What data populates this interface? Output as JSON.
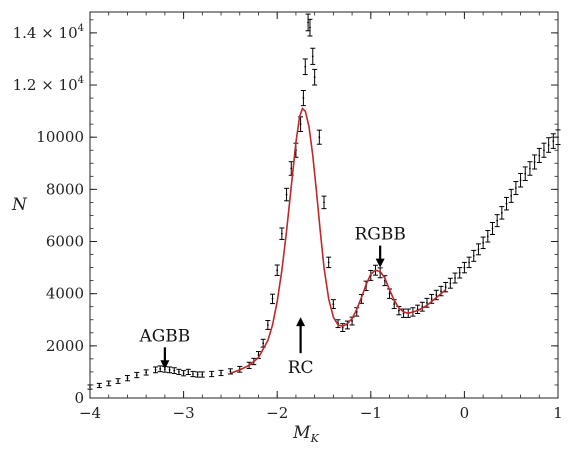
{
  "chart_data": {
    "type": "scatter",
    "title": "",
    "xlabel": "M",
    "xlabel_sub": "K",
    "ylabel": "N",
    "xlim": [
      -4,
      1
    ],
    "ylim": [
      0,
      14800
    ],
    "grid": false,
    "x_ticks": [
      {
        "value": -4,
        "label": "−4"
      },
      {
        "value": -3,
        "label": "−3"
      },
      {
        "value": -2,
        "label": "−2"
      },
      {
        "value": -1,
        "label": "−1"
      },
      {
        "value": 0,
        "label": "0"
      },
      {
        "value": 1,
        "label": "1"
      }
    ],
    "y_ticks": [
      {
        "value": 0,
        "label": "0"
      },
      {
        "value": 2000,
        "label": "2000"
      },
      {
        "value": 4000,
        "label": "4000"
      },
      {
        "value": 6000,
        "label": "6000"
      },
      {
        "value": 8000,
        "label": "8000"
      },
      {
        "value": 10000,
        "label": "10000"
      },
      {
        "value": 12000,
        "label": "1.2 × 10",
        "exp": "4"
      },
      {
        "value": 14000,
        "label": "1.4 × 10",
        "exp": "4"
      }
    ],
    "series": [
      {
        "kind": "points_with_errorbars",
        "color": "#000000",
        "x": [
          -4.0,
          -3.9,
          -3.8,
          -3.7,
          -3.6,
          -3.5,
          -3.4,
          -3.3,
          -3.25,
          -3.2,
          -3.15,
          -3.1,
          -3.05,
          -3.0,
          -2.95,
          -2.9,
          -2.85,
          -2.8,
          -2.7,
          -2.6,
          -2.5,
          -2.4,
          -2.3,
          -2.25,
          -2.2,
          -2.15,
          -2.1,
          -2.05,
          -2.0,
          -1.95,
          -1.9,
          -1.85,
          -1.8,
          -1.75,
          -1.72,
          -1.7,
          -1.67,
          -1.65,
          -1.62,
          -1.6,
          -1.55,
          -1.5,
          -1.45,
          -1.4,
          -1.35,
          -1.3,
          -1.25,
          -1.2,
          -1.15,
          -1.1,
          -1.05,
          -1.0,
          -0.95,
          -0.9,
          -0.85,
          -0.8,
          -0.75,
          -0.7,
          -0.65,
          -0.6,
          -0.55,
          -0.5,
          -0.45,
          -0.4,
          -0.35,
          -0.3,
          -0.25,
          -0.2,
          -0.15,
          -0.1,
          -0.05,
          0.0,
          0.05,
          0.1,
          0.15,
          0.2,
          0.25,
          0.3,
          0.35,
          0.4,
          0.45,
          0.5,
          0.55,
          0.6,
          0.65,
          0.7,
          0.75,
          0.8,
          0.85,
          0.9,
          0.95,
          1.0
        ],
        "y": [
          420,
          480,
          560,
          650,
          760,
          880,
          980,
          1080,
          1120,
          1100,
          1080,
          1050,
          1000,
          950,
          1000,
          920,
          900,
          900,
          920,
          960,
          1020,
          1100,
          1250,
          1400,
          1650,
          2100,
          2800,
          3800,
          4900,
          6300,
          7800,
          8800,
          9500,
          10500,
          11500,
          12700,
          14400,
          14200,
          13100,
          12300,
          10000,
          7500,
          5200,
          3600,
          2850,
          2700,
          2800,
          2950,
          3300,
          3800,
          4300,
          4700,
          4900,
          4800,
          4500,
          4000,
          3600,
          3350,
          3250,
          3250,
          3300,
          3400,
          3500,
          3650,
          3800,
          3950,
          4100,
          4250,
          4400,
          4600,
          4800,
          5000,
          5200,
          5450,
          5700,
          5950,
          6200,
          6500,
          6800,
          7100,
          7450,
          7750,
          8050,
          8350,
          8600,
          8800,
          9050,
          9300,
          9500,
          9700,
          9850,
          10000
        ],
        "err": [
          80,
          80,
          90,
          90,
          100,
          100,
          100,
          110,
          110,
          110,
          110,
          110,
          100,
          100,
          100,
          100,
          100,
          100,
          100,
          100,
          100,
          110,
          120,
          120,
          130,
          150,
          170,
          180,
          200,
          220,
          240,
          260,
          270,
          280,
          290,
          300,
          320,
          320,
          310,
          300,
          270,
          240,
          200,
          170,
          150,
          150,
          150,
          150,
          160,
          170,
          180,
          190,
          190,
          190,
          190,
          180,
          170,
          160,
          160,
          160,
          160,
          160,
          170,
          170,
          170,
          180,
          180,
          180,
          190,
          190,
          200,
          200,
          200,
          210,
          210,
          220,
          220,
          230,
          230,
          240,
          240,
          250,
          250,
          260,
          260,
          260,
          270,
          270,
          270,
          280,
          280,
          280
        ]
      },
      {
        "kind": "fit_line",
        "color": "#c0282a",
        "x": [
          -2.5,
          -2.4,
          -2.3,
          -2.2,
          -2.1,
          -2.05,
          -2.0,
          -1.95,
          -1.9,
          -1.85,
          -1.8,
          -1.76,
          -1.73,
          -1.7,
          -1.66,
          -1.62,
          -1.58,
          -1.54,
          -1.5,
          -1.45,
          -1.4,
          -1.35,
          -1.3,
          -1.25,
          -1.2,
          -1.15,
          -1.1,
          -1.05,
          -1.0,
          -0.95,
          -0.9,
          -0.85,
          -0.8,
          -0.75,
          -0.7,
          -0.65,
          -0.6,
          -0.5,
          -0.4,
          -0.3,
          -0.2
        ],
        "y": [
          950,
          1080,
          1250,
          1550,
          2200,
          2800,
          3700,
          4900,
          6400,
          8100,
          9800,
          10800,
          11100,
          11000,
          10400,
          9300,
          7900,
          6400,
          5000,
          3800,
          3100,
          2800,
          2750,
          2850,
          3050,
          3400,
          3850,
          4350,
          4750,
          4900,
          4850,
          4600,
          4150,
          3750,
          3450,
          3300,
          3250,
          3350,
          3550,
          3850,
          4150
        ]
      }
    ],
    "annotations": [
      {
        "text": "AGBB",
        "arrow_direction": "down",
        "x": -3.2,
        "y": 1100
      },
      {
        "text": "RC",
        "arrow_direction": "up",
        "x": -1.75,
        "y": 3100
      },
      {
        "text": "RGBB",
        "arrow_direction": "down",
        "x": -0.9,
        "y": 5000
      }
    ]
  }
}
